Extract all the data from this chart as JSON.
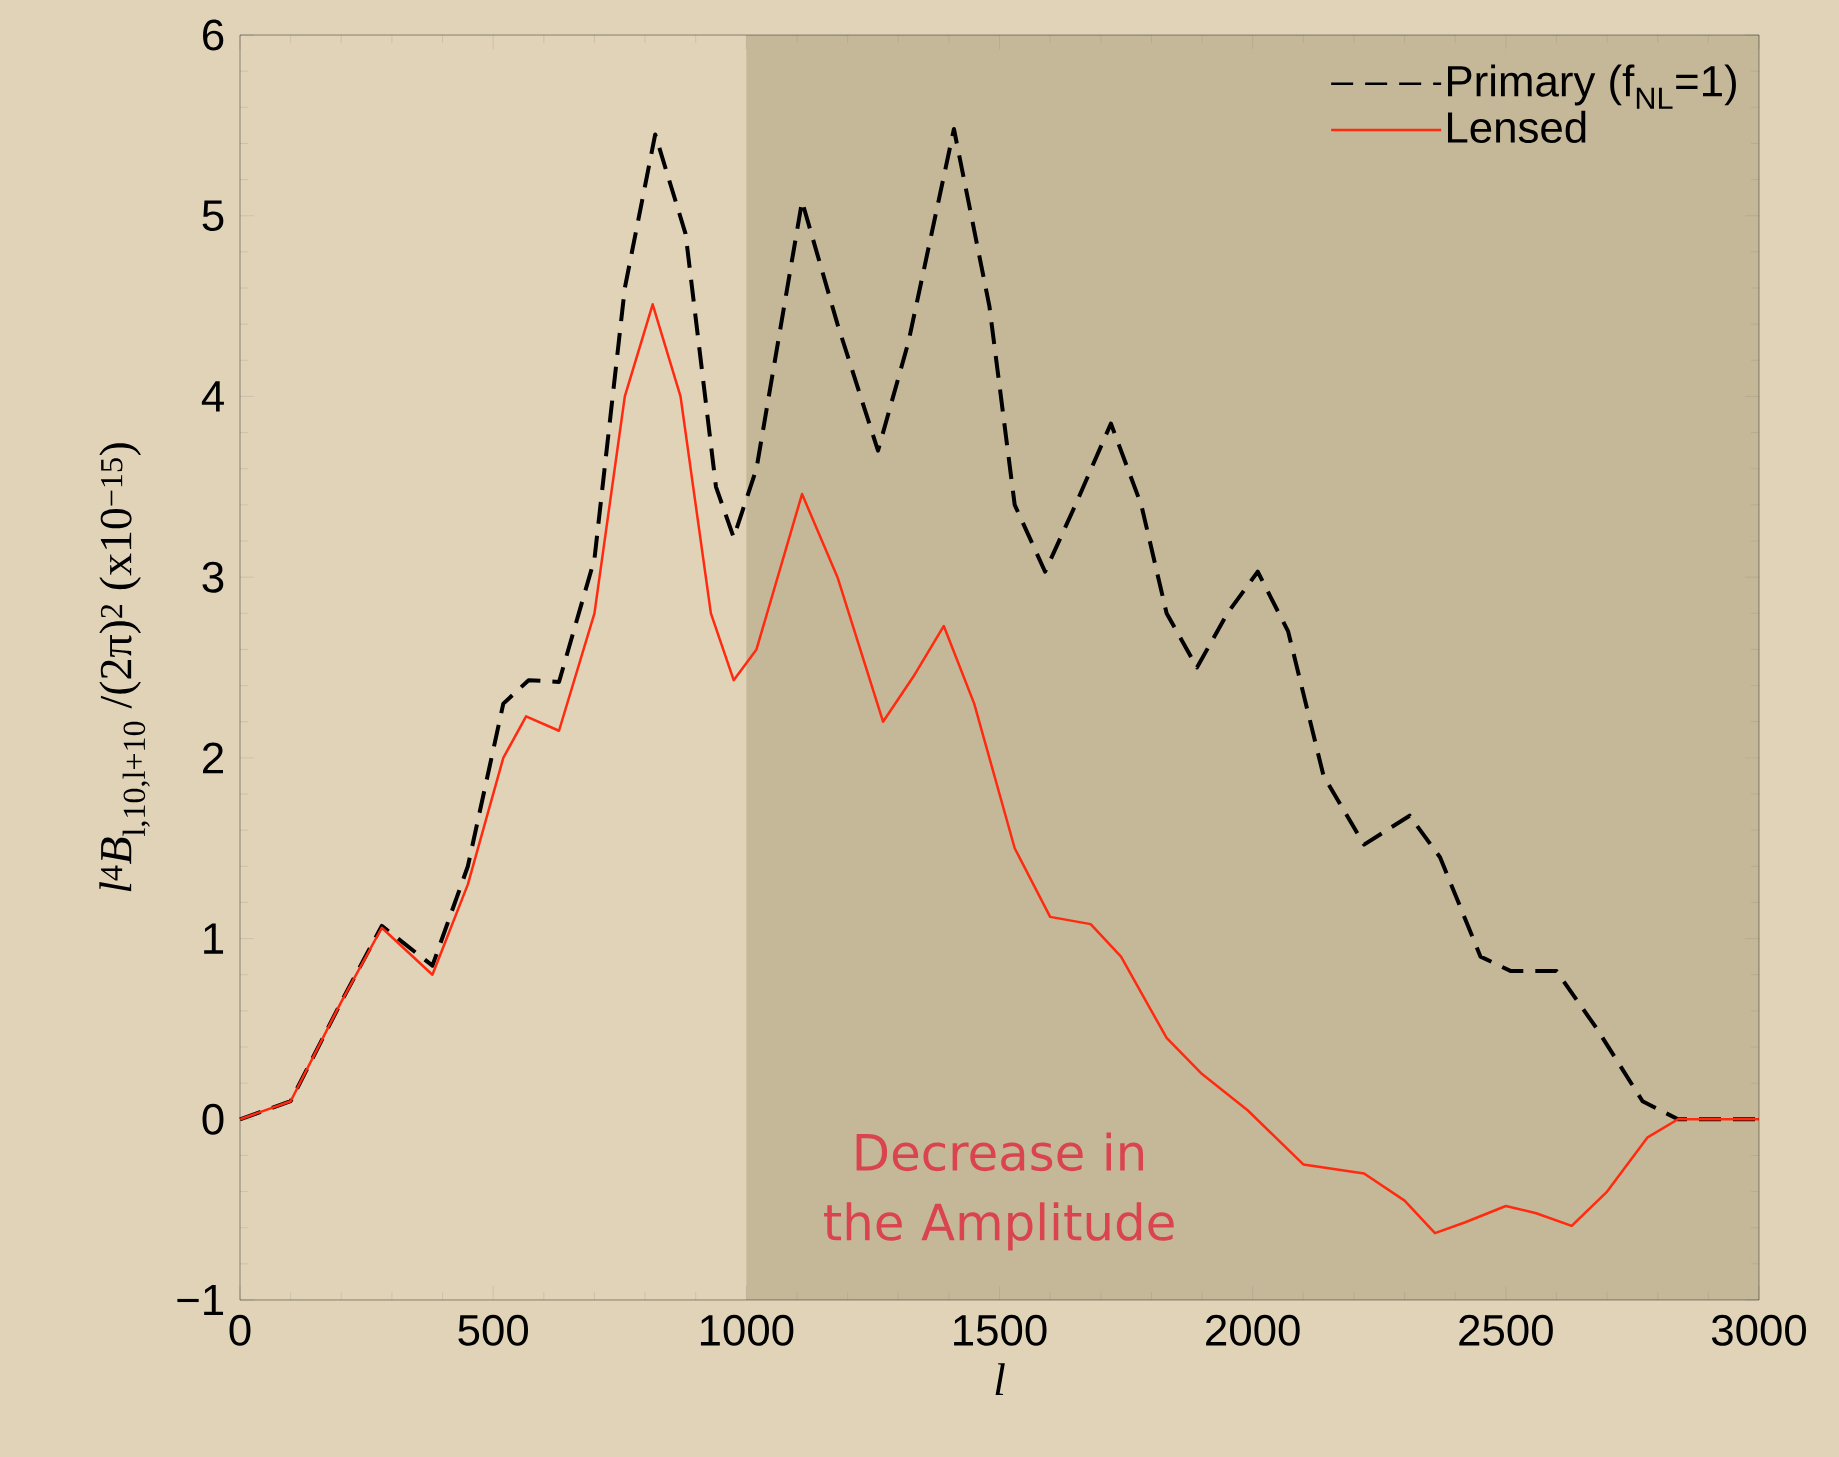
{
  "chart_data": {
    "type": "line",
    "xlabel": "l",
    "ylabel": "*l*$^{4}$*B*$_{l,10,l+10}$ /(2π)$^{2}$ (x10$^{−15}$)",
    "xlim": [
      0,
      3000
    ],
    "ylim": [
      -1,
      6
    ],
    "xticks": [
      0,
      500,
      1000,
      1500,
      2000,
      2500,
      3000
    ],
    "yticks": [
      {
        "value": -1,
        "label": "−1"
      },
      0,
      1,
      2,
      3,
      4,
      5,
      6
    ],
    "legend": "top right",
    "bands": [
      {
        "axis": "x",
        "from": 1000,
        "to": 3000,
        "color": "#c5b898"
      }
    ],
    "annotations": [
      "Decrease in the Amplitude"
    ],
    "series": [
      {
        "name": "Primary (f$_{NL}$=1)",
        "color": "#000000",
        "line_style": "dashed",
        "x": [
          0,
          100,
          200,
          280,
          380,
          450,
          520,
          570,
          630,
          700,
          760,
          820,
          880,
          940,
          975,
          1020,
          1110,
          1180,
          1260,
          1320,
          1410,
          1480,
          1530,
          1590,
          1650,
          1720,
          1780,
          1830,
          1890,
          1950,
          2010,
          2070,
          2140,
          2220,
          2310,
          2370,
          2450,
          2510,
          2600,
          2680,
          2770,
          2840,
          3000
        ],
        "values": [
          0,
          0.1,
          0.65,
          1.07,
          0.85,
          1.4,
          2.3,
          2.43,
          2.42,
          3.1,
          4.6,
          5.45,
          4.9,
          3.5,
          3.22,
          3.6,
          5.08,
          4.4,
          3.7,
          4.3,
          5.48,
          4.5,
          3.4,
          3.03,
          3.4,
          3.85,
          3.4,
          2.8,
          2.5,
          2.8,
          3.03,
          2.7,
          1.9,
          1.52,
          1.68,
          1.45,
          0.9,
          0.82,
          0.82,
          0.5,
          0.1,
          0,
          0
        ]
      },
      {
        "name": "Lensed",
        "color": "#ff2a10",
        "line_style": "solid",
        "x": [
          0,
          100,
          200,
          280,
          380,
          450,
          520,
          565,
          630,
          700,
          760,
          815,
          870,
          930,
          975,
          1020,
          1110,
          1180,
          1270,
          1330,
          1390,
          1450,
          1530,
          1600,
          1680,
          1740,
          1830,
          1900,
          1990,
          2100,
          2220,
          2300,
          2360,
          2420,
          2500,
          2560,
          2630,
          2700,
          2780,
          2840,
          3000
        ],
        "values": [
          0,
          0.1,
          0.65,
          1.06,
          0.8,
          1.3,
          2.0,
          2.23,
          2.15,
          2.8,
          4.0,
          4.51,
          4.0,
          2.8,
          2.43,
          2.6,
          3.46,
          3.0,
          2.2,
          2.45,
          2.73,
          2.3,
          1.5,
          1.12,
          1.08,
          0.9,
          0.45,
          0.25,
          0.05,
          -0.25,
          -0.3,
          -0.45,
          -0.63,
          -0.57,
          -0.48,
          -0.52,
          -0.59,
          -0.4,
          -0.1,
          0,
          0
        ]
      }
    ]
  }
}
